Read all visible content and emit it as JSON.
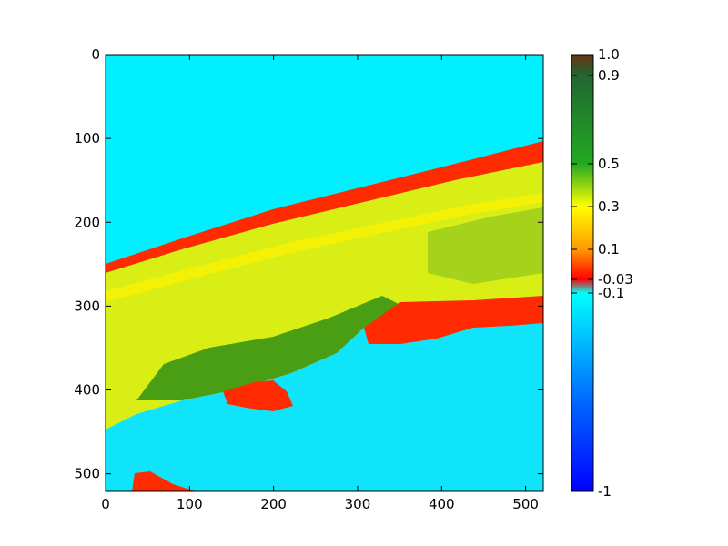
{
  "chart_data": {
    "type": "heatmap",
    "x_ticks": [
      "0",
      "100",
      "200",
      "300",
      "400",
      "500"
    ],
    "y_ticks": [
      "0",
      "100",
      "200",
      "300",
      "400",
      "500"
    ],
    "x_tick_values": [
      0,
      100,
      200,
      300,
      400,
      500
    ],
    "y_tick_values": [
      0,
      100,
      200,
      300,
      400,
      500
    ],
    "xlim": [
      0,
      521
    ],
    "ylim": [
      521,
      0
    ],
    "image_regions": [
      {
        "class": "water",
        "value": -0.15,
        "color": "#00ecff"
      },
      {
        "class": "coastal-strip-north",
        "value": 0.0,
        "color": "#ff2a00"
      },
      {
        "class": "land-vegetation",
        "value": 0.35,
        "color": "#d6ef10"
      },
      {
        "class": "dense-vegetation",
        "value": 0.5,
        "color": "#3e9b12"
      },
      {
        "class": "lagoon-shore",
        "value": 0.0,
        "color": "#ff2a00"
      },
      {
        "class": "islands",
        "value": 0.0,
        "color": "#ff2a00"
      }
    ],
    "colorbar": {
      "tick_labels": [
        "1.0",
        "0.9",
        "0.5",
        "0.3",
        "0.1",
        "-0.03",
        "-0.1",
        "-1"
      ],
      "tick_values": [
        1.0,
        0.9,
        0.5,
        0.3,
        0.1,
        -0.03,
        -0.1,
        -1.0
      ],
      "range": [
        -1,
        1
      ],
      "stops": [
        {
          "value": -1.0,
          "color": "#0000ff"
        },
        {
          "value": -0.6,
          "color": "#0066ff"
        },
        {
          "value": -0.1,
          "color": "#00ffff"
        },
        {
          "value": -0.03,
          "color": "#ff0000"
        },
        {
          "value": 0.1,
          "color": "#ff9900"
        },
        {
          "value": 0.3,
          "color": "#ffff00"
        },
        {
          "value": 0.5,
          "color": "#22aa22"
        },
        {
          "value": 0.9,
          "color": "#226633"
        },
        {
          "value": 1.0,
          "color": "#663311"
        }
      ]
    },
    "grid": false
  }
}
